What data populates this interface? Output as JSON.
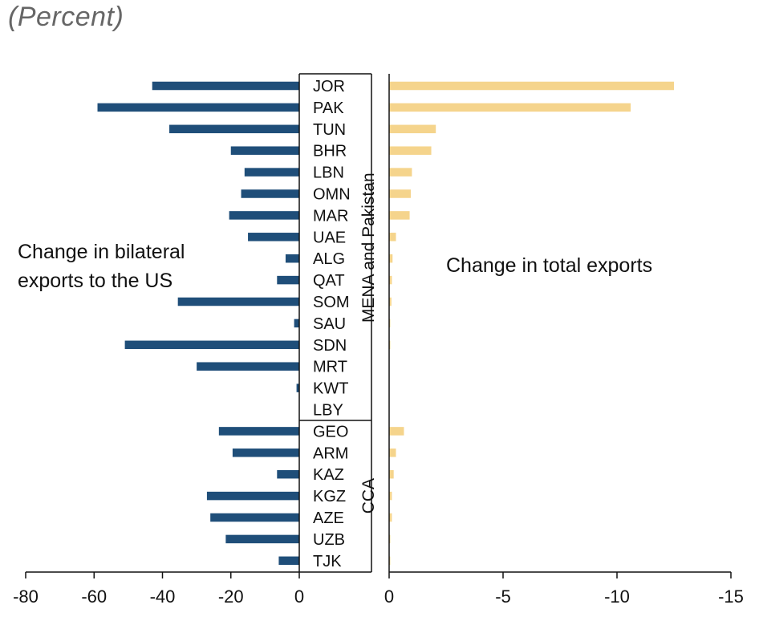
{
  "subtitle": "(Percent)",
  "chart_data": {
    "type": "bar",
    "orientation": "horizontal",
    "subtitle": "(Percent)",
    "categories": [
      "JOR",
      "PAK",
      "TUN",
      "BHR",
      "LBN",
      "OMN",
      "MAR",
      "UAE",
      "ALG",
      "QAT",
      "SOM",
      "SAU",
      "SDN",
      "MRT",
      "KWT",
      "LBY",
      "GEO",
      "ARM",
      "KAZ",
      "KGZ",
      "AZE",
      "UZB",
      "TJK"
    ],
    "groups": [
      {
        "name": "MENA and Pakistan",
        "categories": [
          "JOR",
          "PAK",
          "TUN",
          "BHR",
          "LBN",
          "OMN",
          "MAR",
          "UAE",
          "ALG",
          "QAT",
          "SOM",
          "SAU",
          "SDN",
          "MRT",
          "KWT",
          "LBY"
        ]
      },
      {
        "name": "CCA",
        "categories": [
          "GEO",
          "ARM",
          "KAZ",
          "KGZ",
          "AZE",
          "UZB",
          "TJK"
        ]
      }
    ],
    "series": [
      {
        "name": "Change in bilateral exports to the US",
        "label_lines": [
          "Change in bilateral",
          "exports to the US"
        ],
        "color": "#1f4e79",
        "values": [
          -43,
          -59,
          -38,
          -20,
          -16,
          -17,
          -20.5,
          -15,
          -4,
          -6.5,
          -35.5,
          -1.5,
          -51,
          -30,
          -0.8,
          0,
          -23.5,
          -19.5,
          -6.5,
          -27,
          -26,
          -21.5,
          -6
        ]
      },
      {
        "name": "Change in total exports",
        "label_lines": [
          "Change in total exports"
        ],
        "color": "#f5d48c",
        "values": [
          -12.5,
          -10.6,
          -2.05,
          -1.85,
          -1.0,
          -0.95,
          -0.9,
          -0.3,
          -0.15,
          -0.12,
          -0.1,
          -0.05,
          -0.05,
          0,
          0,
          0,
          -0.65,
          -0.3,
          -0.2,
          -0.12,
          -0.12,
          -0.05,
          -0.05
        ]
      }
    ],
    "panels": [
      {
        "xlim": [
          -80,
          0
        ],
        "ticks": [
          -80,
          -60,
          -40,
          -20,
          0
        ],
        "tick_labels": [
          "-80",
          "-60",
          "-40",
          "-20",
          "0"
        ],
        "direction": "left"
      },
      {
        "xlim": [
          0,
          -15
        ],
        "ticks": [
          0,
          -5,
          -10,
          -15
        ],
        "tick_labels": [
          "0",
          "-5",
          "-10",
          "-15"
        ],
        "direction": "right"
      }
    ],
    "grid": false
  }
}
